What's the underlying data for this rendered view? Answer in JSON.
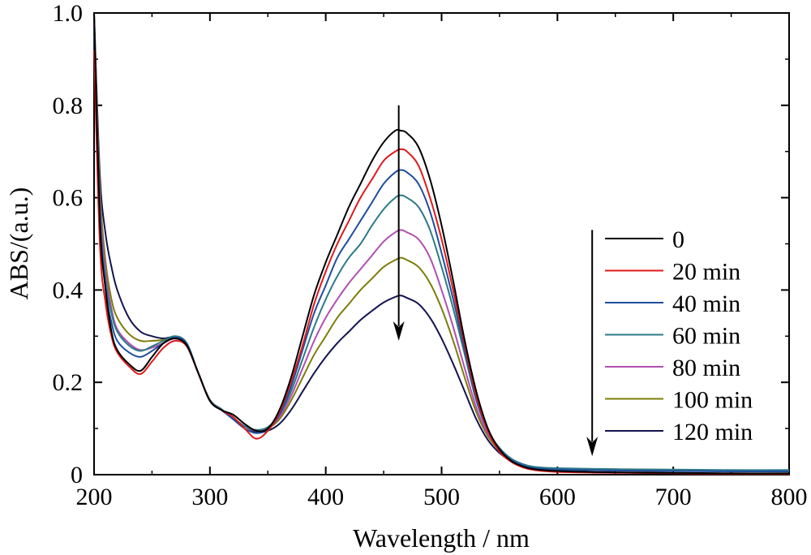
{
  "chart_data": {
    "type": "line",
    "xlabel": "Wavelength / nm",
    "ylabel": "ABS/(a.u.)",
    "xlim": [
      200,
      800
    ],
    "ylim": [
      0,
      1.0
    ],
    "xticks": [
      "200",
      "300",
      "400",
      "500",
      "600",
      "700",
      "800"
    ],
    "yticks": [
      "0",
      "0.2",
      "0.4",
      "0.6",
      "0.8",
      "1.0"
    ],
    "grid": false,
    "legend_position": "right",
    "x": [
      200,
      205,
      210,
      215,
      220,
      230,
      240,
      250,
      260,
      270,
      280,
      290,
      300,
      310,
      320,
      330,
      340,
      350,
      360,
      370,
      380,
      390,
      400,
      410,
      420,
      430,
      440,
      450,
      460,
      465,
      470,
      480,
      490,
      500,
      510,
      520,
      530,
      540,
      550,
      560,
      570,
      580,
      600,
      650,
      700,
      750,
      800
    ],
    "series": [
      {
        "name": "0",
        "color": "#000000",
        "values": [
          1.0,
          0.55,
          0.4,
          0.31,
          0.27,
          0.24,
          0.225,
          0.255,
          0.285,
          0.295,
          0.28,
          0.22,
          0.16,
          0.14,
          0.13,
          0.11,
          0.095,
          0.1,
          0.14,
          0.21,
          0.3,
          0.39,
          0.46,
          0.52,
          0.58,
          0.63,
          0.68,
          0.72,
          0.745,
          0.745,
          0.74,
          0.71,
          0.64,
          0.54,
          0.42,
          0.29,
          0.18,
          0.1,
          0.055,
          0.03,
          0.018,
          0.012,
          0.008,
          0.005,
          0.004,
          0.003,
          0.003
        ]
      },
      {
        "name": "20 min",
        "color": "#e0191b",
        "values": [
          0.92,
          0.5,
          0.37,
          0.3,
          0.265,
          0.235,
          0.218,
          0.245,
          0.275,
          0.29,
          0.278,
          0.22,
          0.16,
          0.14,
          0.125,
          0.1,
          0.078,
          0.095,
          0.135,
          0.2,
          0.28,
          0.37,
          0.44,
          0.5,
          0.55,
          0.6,
          0.64,
          0.68,
          0.7,
          0.705,
          0.7,
          0.67,
          0.6,
          0.51,
          0.4,
          0.28,
          0.17,
          0.095,
          0.05,
          0.028,
          0.016,
          0.01,
          0.006,
          0.004,
          0.003,
          0.002,
          0.002
        ]
      },
      {
        "name": "40 min",
        "color": "#1f4e9e",
        "values": [
          0.95,
          0.56,
          0.4,
          0.33,
          0.29,
          0.265,
          0.255,
          0.268,
          0.285,
          0.297,
          0.283,
          0.22,
          0.16,
          0.14,
          0.12,
          0.1,
          0.09,
          0.098,
          0.13,
          0.19,
          0.27,
          0.35,
          0.41,
          0.47,
          0.51,
          0.55,
          0.59,
          0.63,
          0.655,
          0.66,
          0.655,
          0.63,
          0.57,
          0.48,
          0.38,
          0.27,
          0.165,
          0.095,
          0.055,
          0.032,
          0.02,
          0.014,
          0.011,
          0.009,
          0.008,
          0.007,
          0.007
        ]
      },
      {
        "name": "60 min",
        "color": "#2d7a86",
        "values": [
          0.97,
          0.58,
          0.42,
          0.35,
          0.31,
          0.28,
          0.268,
          0.278,
          0.29,
          0.3,
          0.285,
          0.22,
          0.162,
          0.142,
          0.122,
          0.105,
          0.097,
          0.103,
          0.13,
          0.18,
          0.25,
          0.32,
          0.38,
          0.43,
          0.47,
          0.5,
          0.54,
          0.575,
          0.6,
          0.605,
          0.6,
          0.58,
          0.53,
          0.45,
          0.36,
          0.26,
          0.16,
          0.095,
          0.058,
          0.035,
          0.023,
          0.017,
          0.014,
          0.012,
          0.011,
          0.01,
          0.01
        ]
      },
      {
        "name": "80 min",
        "color": "#b24fb0",
        "values": [
          0.98,
          0.6,
          0.44,
          0.36,
          0.315,
          0.285,
          0.27,
          0.275,
          0.285,
          0.295,
          0.28,
          0.22,
          0.162,
          0.14,
          0.122,
          0.105,
          0.095,
          0.1,
          0.125,
          0.17,
          0.23,
          0.29,
          0.34,
          0.38,
          0.415,
          0.445,
          0.475,
          0.505,
          0.525,
          0.53,
          0.525,
          0.51,
          0.47,
          0.4,
          0.32,
          0.23,
          0.145,
          0.088,
          0.054,
          0.033,
          0.021,
          0.016,
          0.012,
          0.01,
          0.009,
          0.009,
          0.008
        ]
      },
      {
        "name": "100 min",
        "color": "#7d7d0a",
        "values": [
          0.99,
          0.62,
          0.46,
          0.38,
          0.34,
          0.305,
          0.29,
          0.29,
          0.292,
          0.297,
          0.28,
          0.22,
          0.162,
          0.14,
          0.123,
          0.105,
          0.095,
          0.1,
          0.12,
          0.16,
          0.21,
          0.26,
          0.3,
          0.34,
          0.37,
          0.4,
          0.425,
          0.45,
          0.465,
          0.47,
          0.465,
          0.45,
          0.415,
          0.36,
          0.29,
          0.21,
          0.135,
          0.083,
          0.052,
          0.032,
          0.021,
          0.016,
          0.012,
          0.01,
          0.009,
          0.008,
          0.008
        ]
      },
      {
        "name": "120 min",
        "color": "#141450",
        "values": [
          1.0,
          0.65,
          0.52,
          0.45,
          0.4,
          0.34,
          0.31,
          0.3,
          0.295,
          0.298,
          0.28,
          0.22,
          0.16,
          0.14,
          0.122,
          0.105,
          0.092,
          0.095,
          0.11,
          0.14,
          0.18,
          0.22,
          0.255,
          0.285,
          0.31,
          0.335,
          0.355,
          0.373,
          0.385,
          0.388,
          0.383,
          0.37,
          0.34,
          0.295,
          0.24,
          0.18,
          0.12,
          0.075,
          0.047,
          0.03,
          0.02,
          0.015,
          0.011,
          0.009,
          0.008,
          0.008,
          0.007
        ]
      }
    ],
    "annotations": [
      {
        "type": "arrow",
        "direction": "down",
        "x": 463,
        "y_start": 0.8,
        "y_end": 0.29
      },
      {
        "type": "arrow",
        "direction": "down",
        "x": 630,
        "y_start": 0.53,
        "y_end": 0.04
      }
    ]
  }
}
